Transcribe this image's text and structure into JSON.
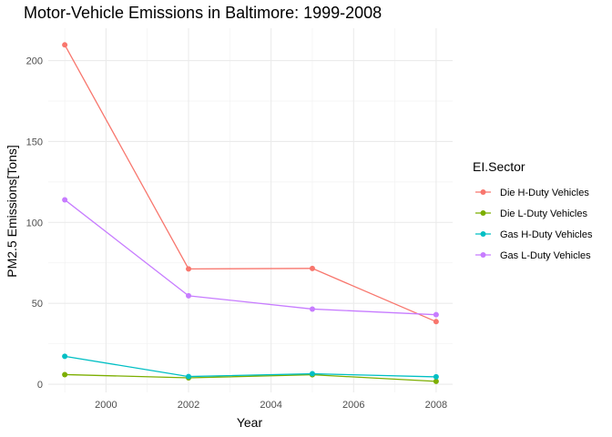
{
  "chart_data": {
    "type": "line",
    "title": "Motor-Vehicle Emissions in Baltimore: 1999-2008",
    "xlabel": "Year",
    "ylabel": "PM2.5 Emissions[Tons]",
    "xlim": [
      1998.6,
      2008.4
    ],
    "ylim": [
      -5,
      220
    ],
    "x_ticks": [
      2000,
      2002,
      2004,
      2006,
      2008
    ],
    "x_tick_labels": [
      "2000",
      "2002",
      "2004",
      "2006",
      "2008"
    ],
    "y_ticks": [
      0,
      50,
      100,
      150,
      200
    ],
    "y_tick_labels": [
      "0",
      "50",
      "100",
      "150",
      "200"
    ],
    "x_minor": [
      1999,
      2001,
      2003,
      2005,
      2007
    ],
    "y_minor": [
      25,
      75,
      125,
      175
    ],
    "grid": true,
    "legend_title": "EI.Sector",
    "legend_position": "right",
    "x": [
      1999,
      2002,
      2005,
      2008
    ],
    "series": [
      {
        "name": "Die H-Duty Vehicles",
        "color": "#F8766D",
        "values": [
          209.7,
          71.3,
          71.6,
          38.7
        ]
      },
      {
        "name": "Die L-Duty Vehicles",
        "color": "#7CAE00",
        "values": [
          6.0,
          4.0,
          5.9,
          1.8
        ]
      },
      {
        "name": "Gas H-Duty Vehicles",
        "color": "#00BFC4",
        "values": [
          17.3,
          4.8,
          6.5,
          4.6
        ]
      },
      {
        "name": "Gas L-Duty Vehicles",
        "color": "#C77CFF",
        "values": [
          114.0,
          54.7,
          46.5,
          43.0
        ]
      }
    ]
  }
}
